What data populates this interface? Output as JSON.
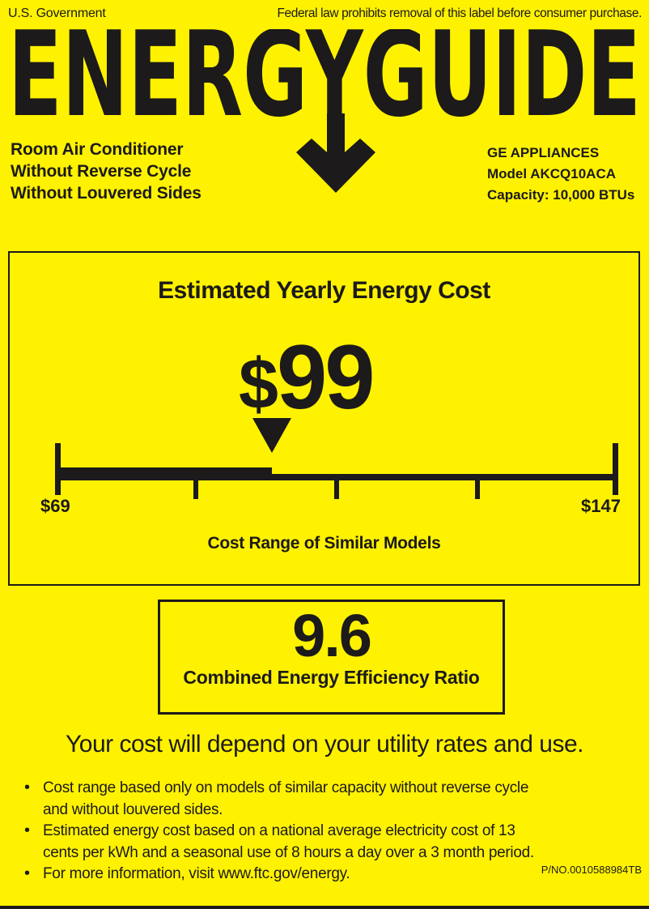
{
  "colors": {
    "background": "#FFF200",
    "ink": "#1C1A1A"
  },
  "header": {
    "left": "U.S. Government",
    "right": "Federal law prohibits removal of this label before consumer purchase."
  },
  "logo": {
    "text": "ENERGYGUIDE",
    "arrow_icon": "down-arrow"
  },
  "product": {
    "type_lines": [
      "Room Air Conditioner",
      "Without Reverse Cycle",
      "Without Louvered Sides"
    ],
    "brand": "GE APPLIANCES",
    "model": "Model AKCQ10ACA",
    "capacity": "Capacity: 10,000 BTUs"
  },
  "cost_box": {
    "title": "Estimated Yearly Energy Cost",
    "currency": "$",
    "value_text": "99",
    "scale": {
      "min": 69,
      "max": 147,
      "value": 99,
      "min_label": "$69",
      "max_label": "$147",
      "caption": "Cost Range of Similar Models"
    }
  },
  "ceer_box": {
    "value": "9.6",
    "label": "Combined Energy Efficiency Ratio"
  },
  "tagline": "Your cost will depend on your utility rates and use.",
  "bullets": [
    {
      "lines": [
        "Cost range based only on models of similar capacity without reverse cycle",
        "and without louvered sides."
      ]
    },
    {
      "lines": [
        "Estimated energy cost based on a national average electricity cost of 13",
        "cents per kWh and a seasonal use of 8 hours a day over a 3 month period."
      ]
    },
    {
      "lines": [
        "For more information, visit www.ftc.gov/energy."
      ]
    }
  ],
  "part_number": "P/NO.0010588984TB"
}
